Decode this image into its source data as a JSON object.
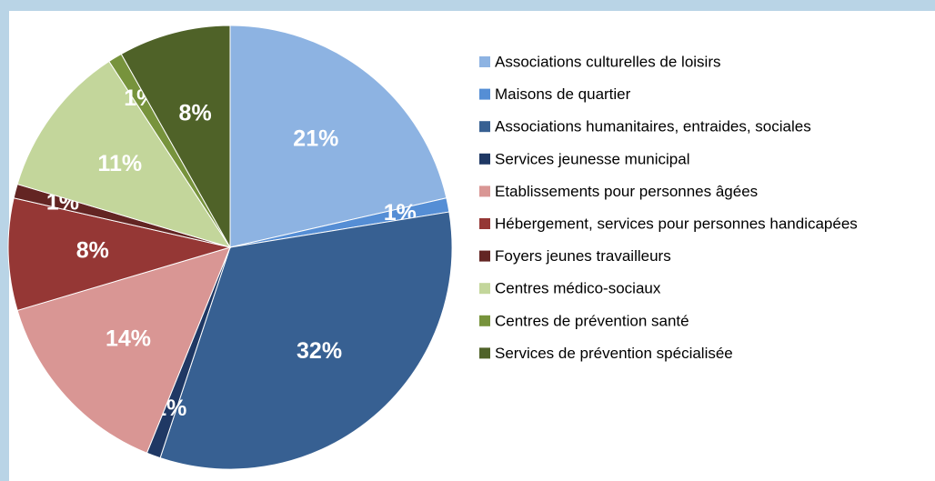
{
  "chart_data": {
    "type": "pie",
    "categories": [
      "Associations culturelles de loisirs",
      "Maisons de quartier",
      "Associations humanitaires,  entraides, sociales",
      "Services jeunesse municipal",
      "Etablissements  pour personnes âgées",
      "Hébergement, services pour personnes handicapées",
      "Foyers jeunes travailleurs",
      "Centres médico-sociaux",
      "Centres de prévention santé",
      "Services de prévention spécialisée"
    ],
    "values": [
      21,
      1,
      32,
      1,
      14,
      8,
      1,
      11,
      1,
      8
    ],
    "value_labels": [
      "21%",
      "1%",
      "32%",
      "1%",
      "14%",
      "8%",
      "1%",
      "11%",
      "1%",
      "8%"
    ],
    "colors": [
      "#8db3e2",
      "#558ed5",
      "#376092",
      "#1f3864",
      "#d99694",
      "#953735",
      "#632523",
      "#c3d69b",
      "#77933c",
      "#4f6228"
    ],
    "legend": "right"
  }
}
